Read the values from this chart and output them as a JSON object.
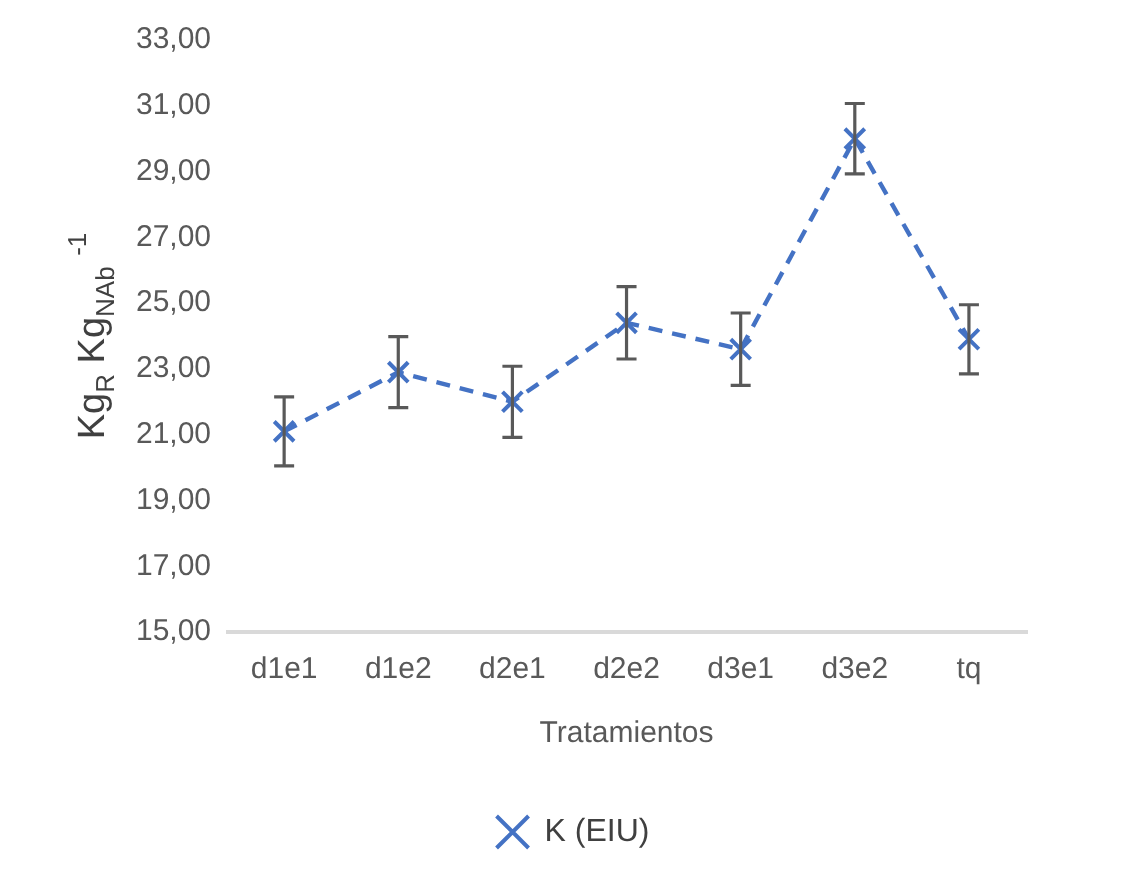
{
  "chart_data": {
    "type": "line",
    "xlabel": "Tratamientos",
    "ylabel": "Kg$_{R}$ Kg$_{NAb}$ $^{-1}$",
    "categories": [
      "d1e1",
      "d1e2",
      "d2e1",
      "d2e2",
      "d3e1",
      "d3e2",
      "tq"
    ],
    "series": [
      {
        "name": "K (EIU)",
        "color": "#4472c4",
        "values": [
          21.1,
          22.9,
          22.0,
          24.4,
          23.6,
          30.0,
          23.9
        ],
        "errors": [
          1.05,
          1.08,
          1.08,
          1.1,
          1.1,
          1.07,
          1.05
        ]
      }
    ],
    "ylim": [
      15,
      33
    ],
    "yticks": [
      {
        "value": 15,
        "label": "15,00"
      },
      {
        "value": 17,
        "label": "17,00"
      },
      {
        "value": 19,
        "label": "19,00"
      },
      {
        "value": 21,
        "label": "21,00"
      },
      {
        "value": 23,
        "label": "23,00"
      },
      {
        "value": 25,
        "label": "25,00"
      },
      {
        "value": 27,
        "label": "27,00"
      },
      {
        "value": 29,
        "label": "29,00"
      },
      {
        "value": 31,
        "label": "31,00"
      },
      {
        "value": 33,
        "label": "33,00"
      }
    ],
    "grid": false,
    "legend": "bottom",
    "marker": "cross",
    "line_style": "dashed"
  }
}
